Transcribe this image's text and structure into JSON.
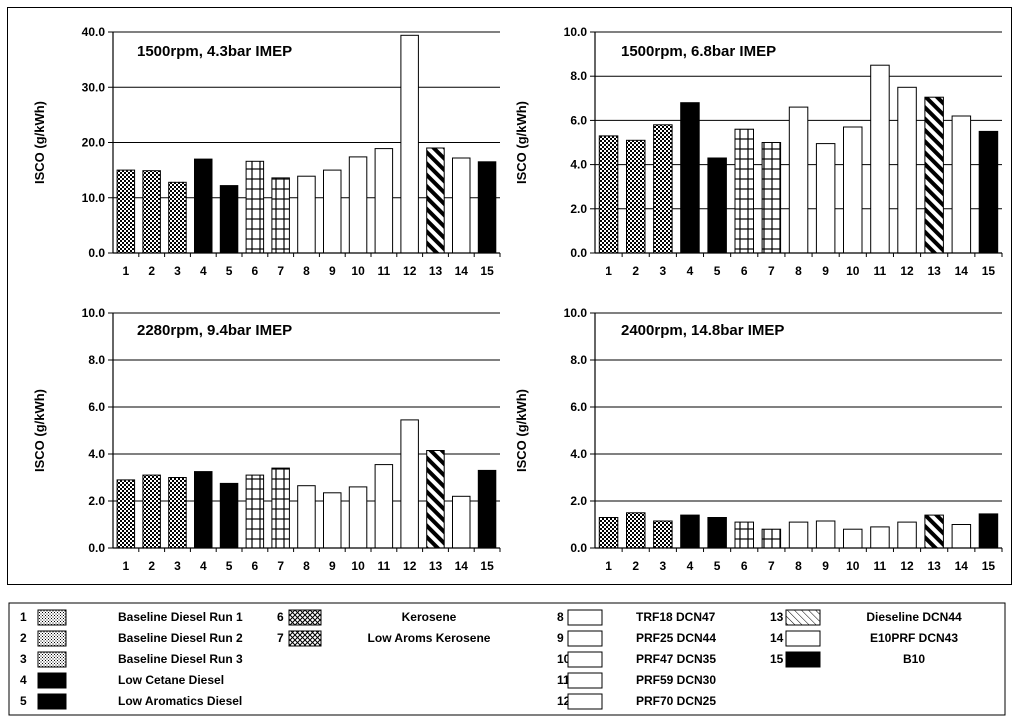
{
  "colors": {
    "axis": "#000000",
    "grid": "#000000",
    "solid_fill": "#000000",
    "open_fill": "#ffffff"
  },
  "chart_data": [
    {
      "type": "bar",
      "title": "1500rpm, 4.3bar IMEP",
      "ylabel": "ISCO (g/kWh)",
      "ylim": [
        0,
        40
      ],
      "yticks": [
        "0.0",
        "10.0",
        "20.0",
        "30.0",
        "40.0"
      ],
      "categories": [
        "1",
        "2",
        "3",
        "4",
        "5",
        "6",
        "7",
        "8",
        "9",
        "10",
        "11",
        "12",
        "13",
        "14",
        "15"
      ],
      "values": [
        15.0,
        14.9,
        12.8,
        17.0,
        12.2,
        16.6,
        13.6,
        13.9,
        15.0,
        17.4,
        18.9,
        39.4,
        19.0,
        17.2,
        16.5
      ],
      "grid": true
    },
    {
      "type": "bar",
      "title": "1500rpm, 6.8bar IMEP",
      "ylabel": "ISCO (g/kWh)",
      "ylim": [
        0,
        10
      ],
      "yticks": [
        "0.0",
        "2.0",
        "4.0",
        "6.0",
        "8.0",
        "10.0"
      ],
      "categories": [
        "1",
        "2",
        "3",
        "4",
        "5",
        "6",
        "7",
        "8",
        "9",
        "10",
        "11",
        "12",
        "13",
        "14",
        "15"
      ],
      "values": [
        5.3,
        5.1,
        5.8,
        6.8,
        4.3,
        5.6,
        5.0,
        6.6,
        4.95,
        5.7,
        8.5,
        7.5,
        7.05,
        6.2,
        5.5
      ],
      "grid": true
    },
    {
      "type": "bar",
      "title": "2280rpm, 9.4bar IMEP",
      "ylabel": "ISCO (g/kWh)",
      "ylim": [
        0,
        10
      ],
      "yticks": [
        "0.0",
        "2.0",
        "4.0",
        "6.0",
        "8.0",
        "10.0"
      ],
      "categories": [
        "1",
        "2",
        "3",
        "4",
        "5",
        "6",
        "7",
        "8",
        "9",
        "10",
        "11",
        "12",
        "13",
        "14",
        "15"
      ],
      "values": [
        2.9,
        3.1,
        3.0,
        3.25,
        2.75,
        3.1,
        3.4,
        2.65,
        2.35,
        2.6,
        3.55,
        5.45,
        4.15,
        2.2,
        3.3
      ],
      "grid": true
    },
    {
      "type": "bar",
      "title": "2400rpm, 14.8bar IMEP",
      "ylabel": "ISCO (g/kWh)",
      "ylim": [
        0,
        10
      ],
      "yticks": [
        "0.0",
        "2.0",
        "4.0",
        "6.0",
        "8.0",
        "10.0"
      ],
      "categories": [
        "1",
        "2",
        "3",
        "4",
        "5",
        "6",
        "7",
        "8",
        "9",
        "10",
        "11",
        "12",
        "13",
        "14",
        "15"
      ],
      "values": [
        1.3,
        1.5,
        1.15,
        1.4,
        1.3,
        1.1,
        0.8,
        1.1,
        1.15,
        0.8,
        0.9,
        1.1,
        1.4,
        1.0,
        1.45
      ],
      "grid": true
    }
  ],
  "legend": {
    "items": [
      {
        "num": "1",
        "label": "Baseline Diesel Run 1",
        "pattern": "dots"
      },
      {
        "num": "2",
        "label": "Baseline Diesel Run 2",
        "pattern": "dots"
      },
      {
        "num": "3",
        "label": "Baseline Diesel Run 3",
        "pattern": "dots"
      },
      {
        "num": "4",
        "label": "Low Cetane Diesel",
        "pattern": "solid"
      },
      {
        "num": "5",
        "label": "Low Aromatics Diesel",
        "pattern": "solid"
      },
      {
        "num": "6",
        "label": "Kerosene",
        "pattern": "grid"
      },
      {
        "num": "7",
        "label": "Low Aroms Kerosene",
        "pattern": "grid"
      },
      {
        "num": "8",
        "label": "TRF18 DCN47",
        "pattern": "open"
      },
      {
        "num": "9",
        "label": "PRF25 DCN44",
        "pattern": "open"
      },
      {
        "num": "10",
        "label": "PRF47 DCN35",
        "pattern": "open"
      },
      {
        "num": "11",
        "label": "PRF59 DCN30",
        "pattern": "open"
      },
      {
        "num": "12",
        "label": "PRF70 DCN25",
        "pattern": "open"
      },
      {
        "num": "13",
        "label": "Dieseline DCN44",
        "pattern": "hatch"
      },
      {
        "num": "14",
        "label": "E10PRF DCN43",
        "pattern": "open"
      },
      {
        "num": "15",
        "label": "B10",
        "pattern": "solid"
      }
    ]
  }
}
